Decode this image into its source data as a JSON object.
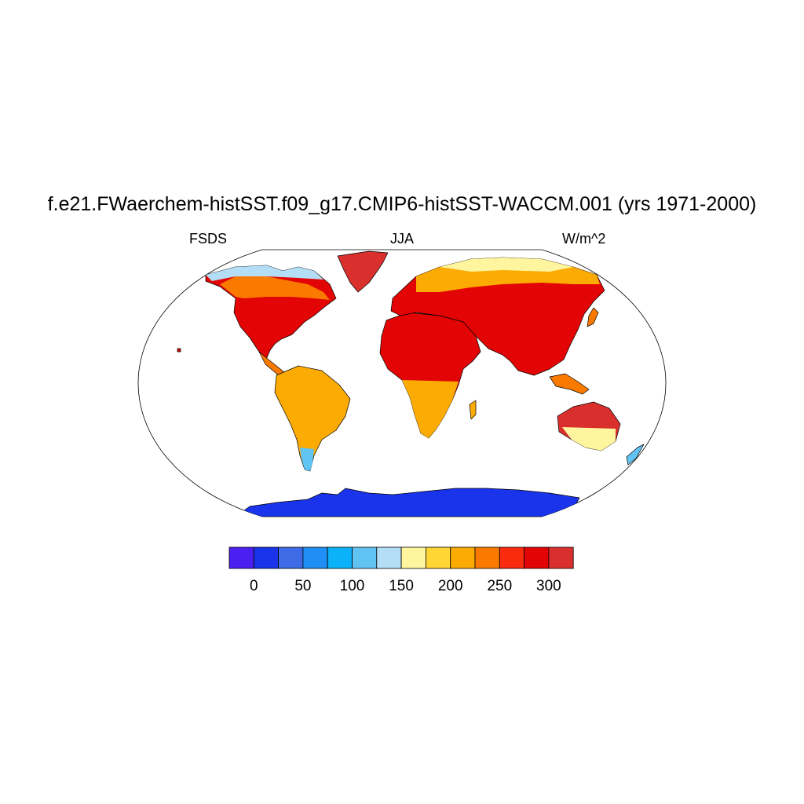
{
  "plot": {
    "title": "f.e21.FWaerchem-histSST.f09_g17.CMIP6-histSST-WACCM.001 (yrs 1971-2000)",
    "left_label": "FSDS",
    "center_label": "JJA",
    "right_label": "W/m^2"
  },
  "colorbar": {
    "colors": [
      "#4b1ef2",
      "#1a34eb",
      "#3d6ce6",
      "#1f8ff5",
      "#0bb2fa",
      "#60c3f2",
      "#b3def5",
      "#fff59e",
      "#ffd633",
      "#fcab02",
      "#fa7a00",
      "#fa2a0d",
      "#e30505",
      "#d9302e"
    ],
    "tick_labels": [
      "0",
      "50",
      "100",
      "150",
      "200",
      "250",
      "300"
    ]
  },
  "map_colors": {
    "ocean": "#ffffff",
    "outline": "#000000",
    "antarctica": "#1a34eb"
  }
}
